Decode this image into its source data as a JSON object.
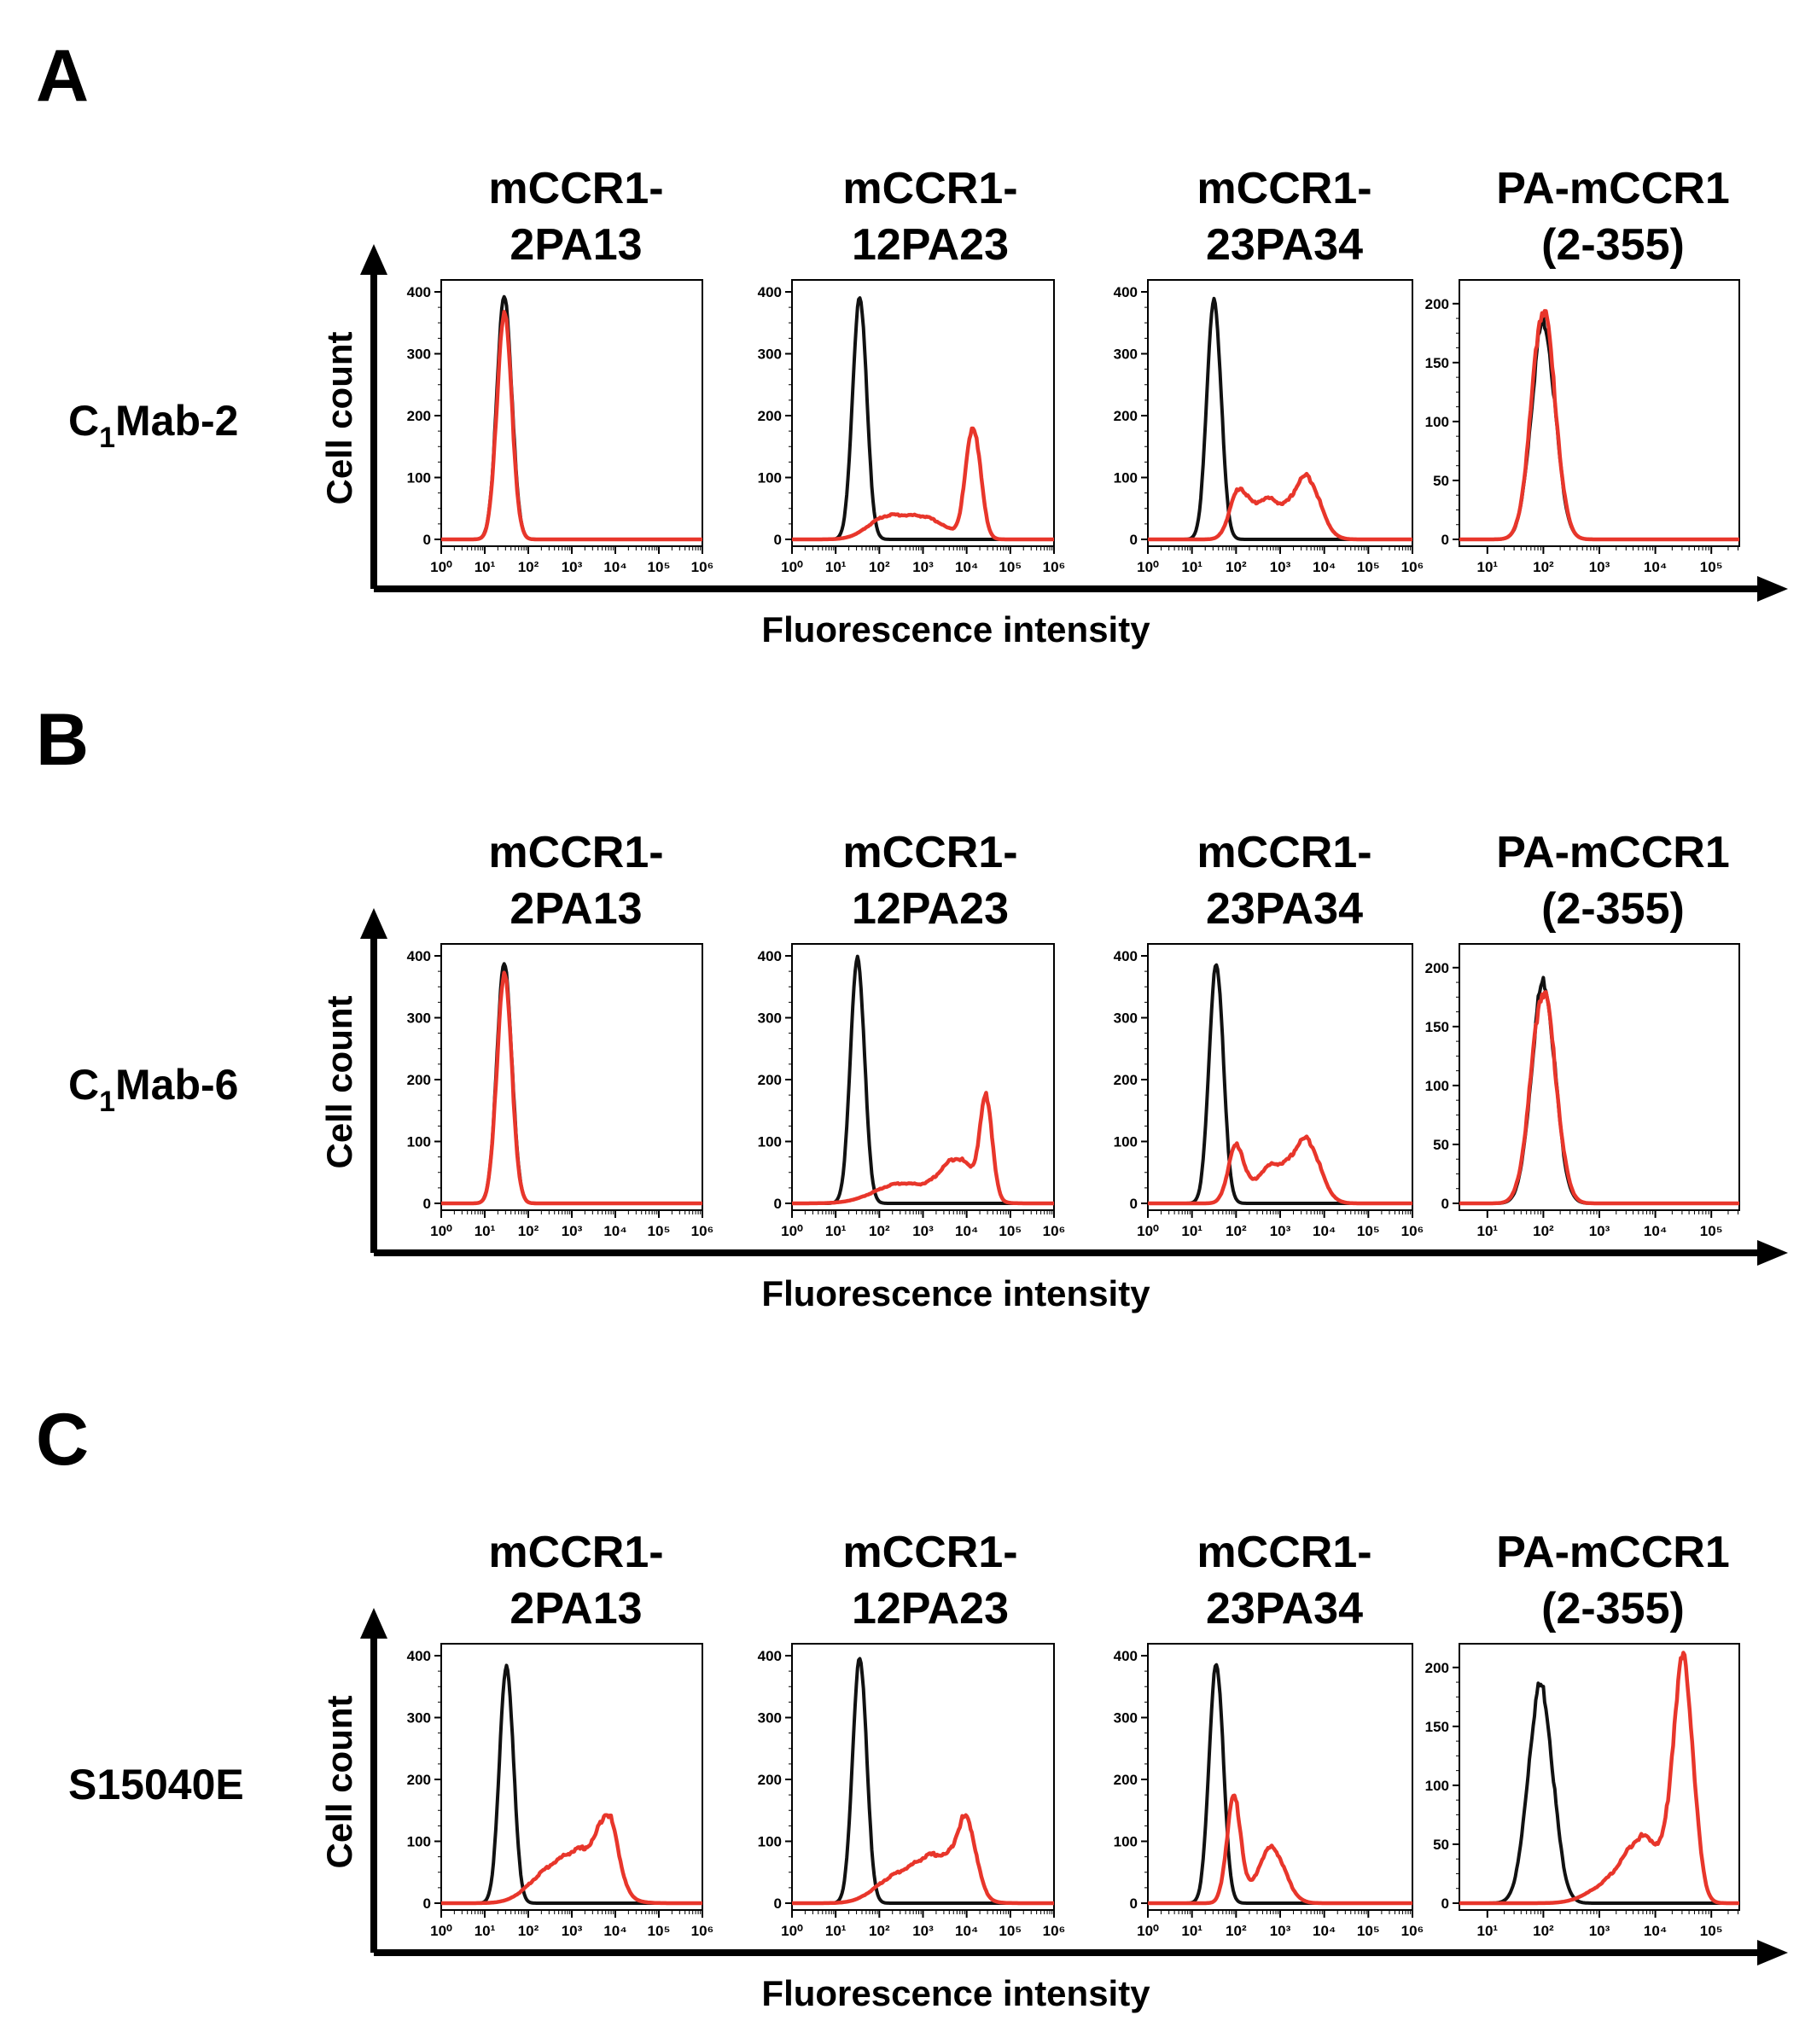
{
  "figure": {
    "x_axis_label": "Fluorescence intensity",
    "y_axis_label": "Cell count",
    "colors": {
      "control": "#111111",
      "antibody": "#e8362b",
      "axis": "#000000"
    },
    "columns": [
      "mCCR1-\n2PA13",
      "mCCR1-\n12PA23",
      "mCCR1-\n23PA34",
      "PA-mCCR1\n(2-355)"
    ]
  },
  "chart_data": [
    {
      "panel": "A",
      "antibody": "C1Mab-2",
      "type": "line",
      "histograms": [
        {
          "column": "mCCR1-2PA13",
          "scale": "six",
          "xlim": [
            0,
            6
          ],
          "ylim": [
            0,
            400
          ],
          "yticks": [
            0,
            100,
            200,
            300,
            400
          ],
          "series": [
            {
              "color": "#111111",
              "peaks": [
                [
                  1.45,
                  395,
                  0.17
                ]
              ]
            },
            {
              "color": "#e8362b",
              "peaks": [
                [
                  1.45,
                  365,
                  0.17
                ]
              ]
            }
          ]
        },
        {
          "column": "mCCR1-12PA23",
          "scale": "six",
          "xlim": [
            0,
            6
          ],
          "ylim": [
            0,
            400
          ],
          "yticks": [
            0,
            100,
            200,
            300,
            400
          ],
          "series": [
            {
              "color": "#111111",
              "peaks": [
                [
                  1.55,
                  395,
                  0.16
                ]
              ]
            },
            {
              "color": "#e8362b",
              "peaks": [
                [
                  2.1,
                  30,
                  0.4
                ],
                [
                  3.0,
                  35,
                  0.5
                ],
                [
                  4.15,
                  180,
                  0.17
                ]
              ]
            }
          ]
        },
        {
          "column": "mCCR1-23PA34",
          "scale": "six",
          "xlim": [
            0,
            6
          ],
          "ylim": [
            0,
            400
          ],
          "yticks": [
            0,
            100,
            200,
            300,
            400
          ],
          "series": [
            {
              "color": "#111111",
              "peaks": [
                [
                  1.5,
                  390,
                  0.16
                ]
              ]
            },
            {
              "color": "#e8362b",
              "peaks": [
                [
                  2.05,
                  70,
                  0.2
                ],
                [
                  2.7,
                  65,
                  0.35
                ],
                [
                  3.6,
                  100,
                  0.3
                ]
              ]
            }
          ]
        },
        {
          "column": "PA-mCCR1(2-355)",
          "scale": "five",
          "xlim": [
            0.5,
            5.5
          ],
          "ylim": [
            0,
            210
          ],
          "yticks": [
            0,
            50,
            100,
            150,
            200
          ],
          "series": [
            {
              "color": "#111111",
              "peaks": [
                [
                  2.0,
                  185,
                  0.21
                ]
              ]
            },
            {
              "color": "#e8362b",
              "peaks": [
                [
                  2.0,
                  195,
                  0.21
                ]
              ]
            }
          ]
        }
      ]
    },
    {
      "panel": "B",
      "antibody": "C1Mab-6",
      "type": "line",
      "histograms": [
        {
          "column": "mCCR1-2PA13",
          "scale": "six",
          "xlim": [
            0,
            6
          ],
          "ylim": [
            0,
            400
          ],
          "yticks": [
            0,
            100,
            200,
            300,
            400
          ],
          "series": [
            {
              "color": "#111111",
              "peaks": [
                [
                  1.45,
                  390,
                  0.17
                ]
              ]
            },
            {
              "color": "#e8362b",
              "peaks": [
                [
                  1.45,
                  370,
                  0.17
                ]
              ]
            }
          ]
        },
        {
          "column": "mCCR1-12PA23",
          "scale": "six",
          "xlim": [
            0,
            6
          ],
          "ylim": [
            0,
            400
          ],
          "yticks": [
            0,
            100,
            200,
            300,
            400
          ],
          "series": [
            {
              "color": "#111111",
              "peaks": [
                [
                  1.5,
                  400,
                  0.16
                ]
              ]
            },
            {
              "color": "#e8362b",
              "peaks": [
                [
                  2.5,
                  32,
                  0.6
                ],
                [
                  3.8,
                  70,
                  0.4
                ],
                [
                  4.45,
                  155,
                  0.14
                ]
              ]
            }
          ]
        },
        {
          "column": "mCCR1-23PA34",
          "scale": "six",
          "xlim": [
            0,
            6
          ],
          "ylim": [
            0,
            400
          ],
          "yticks": [
            0,
            100,
            200,
            300,
            400
          ],
          "series": [
            {
              "color": "#111111",
              "peaks": [
                [
                  1.55,
                  390,
                  0.16
                ]
              ]
            },
            {
              "color": "#e8362b",
              "peaks": [
                [
                  2.0,
                  90,
                  0.18
                ],
                [
                  2.8,
                  60,
                  0.35
                ],
                [
                  3.6,
                  100,
                  0.3
                ]
              ]
            }
          ]
        },
        {
          "column": "PA-mCCR1(2-355)",
          "scale": "five",
          "xlim": [
            0.5,
            5.5
          ],
          "ylim": [
            0,
            210
          ],
          "yticks": [
            0,
            50,
            100,
            150,
            200
          ],
          "series": [
            {
              "color": "#111111",
              "peaks": [
                [
                  2.0,
                  188,
                  0.21
                ]
              ]
            },
            {
              "color": "#e8362b",
              "peaks": [
                [
                  2.0,
                  180,
                  0.22
                ]
              ]
            }
          ]
        }
      ]
    },
    {
      "panel": "C",
      "antibody": "S15040E",
      "type": "line",
      "histograms": [
        {
          "column": "mCCR1-2PA13",
          "scale": "six",
          "xlim": [
            0,
            6
          ],
          "ylim": [
            0,
            400
          ],
          "yticks": [
            0,
            100,
            200,
            300,
            400
          ],
          "series": [
            {
              "color": "#111111",
              "peaks": [
                [
                  1.5,
                  385,
                  0.16
                ]
              ]
            },
            {
              "color": "#e8362b",
              "peaks": [
                [
                  2.4,
                  40,
                  0.45
                ],
                [
                  3.3,
                  80,
                  0.5
                ],
                [
                  3.85,
                  100,
                  0.22
                ]
              ]
            }
          ]
        },
        {
          "column": "mCCR1-12PA23",
          "scale": "six",
          "xlim": [
            0,
            6
          ],
          "ylim": [
            0,
            400
          ],
          "yticks": [
            0,
            100,
            200,
            300,
            400
          ],
          "series": [
            {
              "color": "#111111",
              "peaks": [
                [
                  1.55,
                  400,
                  0.16
                ]
              ]
            },
            {
              "color": "#e8362b",
              "peaks": [
                [
                  2.3,
                  35,
                  0.45
                ],
                [
                  3.3,
                  75,
                  0.5
                ],
                [
                  4.0,
                  110,
                  0.22
                ]
              ]
            }
          ]
        },
        {
          "column": "mCCR1-23PA34",
          "scale": "six",
          "xlim": [
            0,
            6
          ],
          "ylim": [
            0,
            400
          ],
          "yticks": [
            0,
            100,
            200,
            300,
            400
          ],
          "series": [
            {
              "color": "#111111",
              "peaks": [
                [
                  1.55,
                  390,
                  0.16
                ]
              ]
            },
            {
              "color": "#e8362b",
              "peaks": [
                [
                  1.95,
                  170,
                  0.16
                ],
                [
                  2.8,
                  90,
                  0.3
                ]
              ]
            }
          ]
        },
        {
          "column": "PA-mCCR1(2-355)",
          "scale": "five",
          "xlim": [
            0.5,
            5.5
          ],
          "ylim": [
            0,
            210
          ],
          "yticks": [
            0,
            50,
            100,
            150,
            200
          ],
          "series": [
            {
              "color": "#111111",
              "peaks": [
                [
                  1.95,
                  185,
                  0.22
                ]
              ]
            },
            {
              "color": "#e8362b",
              "peaks": [
                [
                  3.1,
                  12,
                  0.35
                ],
                [
                  3.8,
                  55,
                  0.35
                ],
                [
                  4.5,
                  200,
                  0.18
                ]
              ]
            }
          ]
        }
      ]
    }
  ]
}
